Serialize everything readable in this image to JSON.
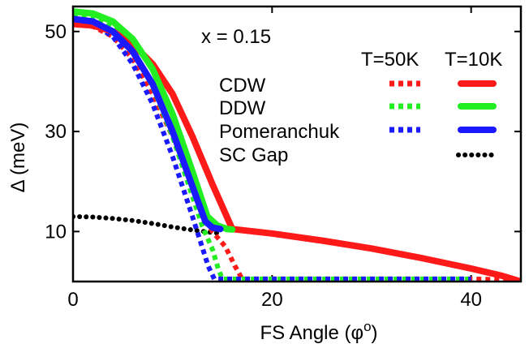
{
  "chart_data": {
    "type": "line",
    "annotation": "x = 0.15",
    "xlabel": "FS Angle (φ",
    "xlabel_sup": "o",
    "xlabel_close": ")",
    "ylabel": "Δ (meV)",
    "xlim": [
      0,
      45
    ],
    "ylim": [
      0,
      55
    ],
    "x_ticks": [
      0,
      20,
      40
    ],
    "y_ticks": [
      10,
      30,
      50
    ],
    "legend_headers": [
      "T=50K",
      "T=10K"
    ],
    "legend_labels": [
      "CDW",
      "DDW",
      "Pomeranchuk",
      "SC Gap"
    ],
    "colors": {
      "cdw": "#ff1a1a",
      "ddw": "#22ee22",
      "pom": "#1a1aff",
      "sc": "#000000"
    },
    "series": [
      {
        "name": "CDW",
        "label_index": 0,
        "T": "10K",
        "style": "solid",
        "color": "#ff1a1a",
        "points": [
          [
            0,
            51.5
          ],
          [
            2,
            51.2
          ],
          [
            4,
            50.0
          ],
          [
            6,
            47.5
          ],
          [
            8,
            43.5
          ],
          [
            10,
            37.5
          ],
          [
            12,
            29.0
          ],
          [
            14,
            19.5
          ],
          [
            16,
            10.5
          ],
          [
            20,
            9.6
          ],
          [
            25,
            8.2
          ],
          [
            30,
            6.6
          ],
          [
            35,
            4.7
          ],
          [
            40,
            2.6
          ],
          [
            43,
            1.2
          ],
          [
            45,
            0
          ]
        ]
      },
      {
        "name": "CDW",
        "label_index": 0,
        "T": "50K",
        "style": "dotted",
        "color": "#ff1a1a",
        "points": [
          [
            0,
            51.5
          ],
          [
            2,
            51.0
          ],
          [
            4,
            49.0
          ],
          [
            6,
            44.5
          ],
          [
            8,
            37.5
          ],
          [
            10,
            29.0
          ],
          [
            12,
            19.0
          ],
          [
            14,
            10.0
          ],
          [
            15.3,
            7.0
          ],
          [
            16.3,
            3.0
          ],
          [
            17,
            0.5
          ],
          [
            20,
            0.5
          ],
          [
            30,
            0.5
          ],
          [
            40,
            0.5
          ],
          [
            45,
            0.3
          ]
        ]
      },
      {
        "name": "DDW",
        "label_index": 1,
        "T": "10K",
        "style": "solid",
        "color": "#22ee22",
        "points": [
          [
            0,
            54.0
          ],
          [
            2,
            53.6
          ],
          [
            4,
            52.0
          ],
          [
            6,
            48.5
          ],
          [
            8,
            42.5
          ],
          [
            10,
            33.5
          ],
          [
            12,
            22.0
          ],
          [
            13.5,
            13.0
          ],
          [
            14.5,
            11.2
          ],
          [
            15.5,
            10.5
          ],
          [
            16,
            10.4
          ]
        ]
      },
      {
        "name": "DDW",
        "label_index": 1,
        "T": "50K",
        "style": "dotted",
        "color": "#22ee22",
        "points": [
          [
            0,
            53.5
          ],
          [
            2,
            53.0
          ],
          [
            4,
            51.0
          ],
          [
            6,
            46.5
          ],
          [
            8,
            39.0
          ],
          [
            10,
            29.0
          ],
          [
            12,
            17.0
          ],
          [
            13,
            11.0
          ],
          [
            14,
            6.5
          ],
          [
            14.6,
            2.5
          ],
          [
            15,
            0.5
          ],
          [
            20,
            0.5
          ],
          [
            30,
            0.5
          ],
          [
            40,
            0.5
          ]
        ]
      },
      {
        "name": "Pomeranchuk",
        "label_index": 2,
        "T": "10K",
        "style": "solid",
        "color": "#1a1aff",
        "points": [
          [
            0,
            52.5
          ],
          [
            2,
            52.0
          ],
          [
            4,
            50.0
          ],
          [
            6,
            46.0
          ],
          [
            8,
            39.5
          ],
          [
            10,
            30.0
          ],
          [
            12,
            19.0
          ],
          [
            13.3,
            12.0
          ],
          [
            14,
            10.8
          ],
          [
            14.8,
            10.5
          ]
        ]
      },
      {
        "name": "Pomeranchuk",
        "label_index": 2,
        "T": "50K",
        "style": "dotted",
        "color": "#1a1aff",
        "points": [
          [
            0,
            52.5
          ],
          [
            2,
            51.5
          ],
          [
            4,
            49.0
          ],
          [
            6,
            43.5
          ],
          [
            8,
            35.5
          ],
          [
            10,
            25.0
          ],
          [
            12,
            13.0
          ],
          [
            12.8,
            8.0
          ],
          [
            13.6,
            3.0
          ],
          [
            14.2,
            0.5
          ],
          [
            20,
            0.5
          ],
          [
            30,
            0.5
          ],
          [
            40,
            0.5
          ]
        ]
      },
      {
        "name": "SC Gap",
        "label_index": 3,
        "T": "",
        "style": "dots",
        "color": "#000000",
        "points": [
          [
            0,
            13.0
          ],
          [
            2,
            12.9
          ],
          [
            4,
            12.6
          ],
          [
            6,
            12.2
          ],
          [
            8,
            11.6
          ],
          [
            10,
            10.9
          ],
          [
            12,
            10.3
          ],
          [
            14,
            9.8
          ],
          [
            15,
            9.6
          ]
        ]
      }
    ]
  }
}
